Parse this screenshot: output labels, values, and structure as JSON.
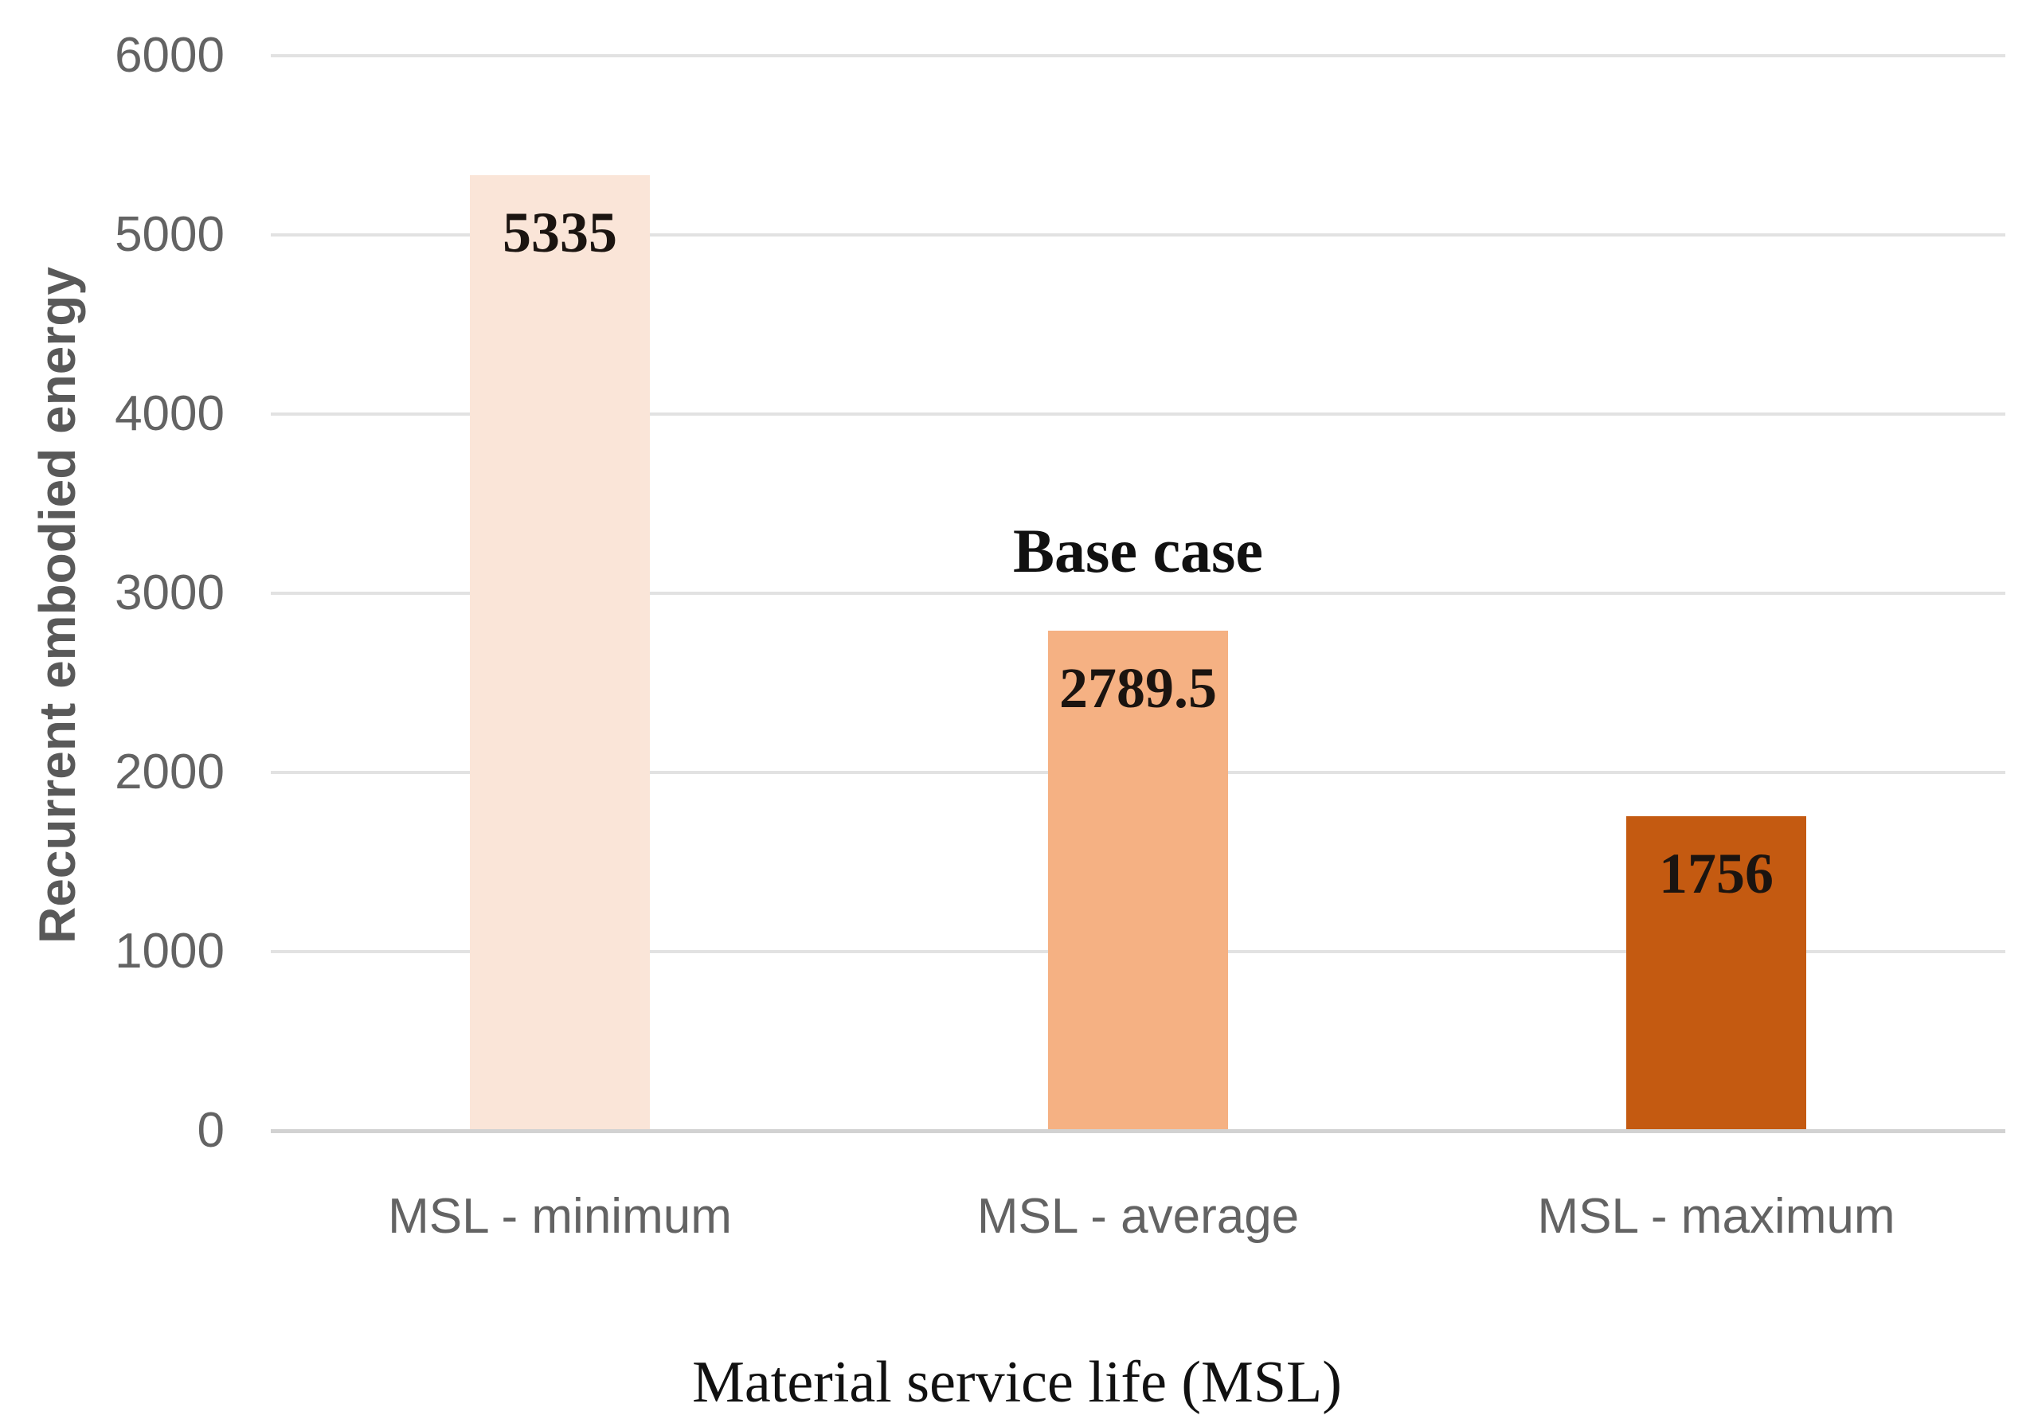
{
  "chart_data": {
    "type": "bar",
    "title": "",
    "xlabel": "Material service life (MSL)",
    "ylabel": "Recurrent embodied energy",
    "categories": [
      "MSL - minimum",
      "MSL - average",
      "MSL - maximum"
    ],
    "values": [
      5335,
      2789.5,
      1756
    ],
    "value_labels": [
      "5335",
      "2789.5",
      "1756"
    ],
    "bar_colors": [
      "#FAE5D8",
      "#F5B183",
      "#C45A11"
    ],
    "annotation": {
      "text": "Base case",
      "category": "MSL - average",
      "category_index": 1
    },
    "ylim": [
      0,
      6000
    ],
    "yticks": [
      0,
      1000,
      2000,
      3000,
      4000,
      5000,
      6000
    ],
    "ytick_labels": [
      "0",
      "1000",
      "2000",
      "3000",
      "4000",
      "5000",
      "6000"
    ],
    "grid": "horizontal",
    "legend_position": "none"
  },
  "colors": {
    "background": "#FFFFFF",
    "gridline": "#E2E2E2",
    "axis_line": "#D2D2D2",
    "tick_text": "#636363",
    "axis_title_text": "#595959",
    "value_label_text": "#1B1410",
    "annotation_text": "#111111"
  }
}
